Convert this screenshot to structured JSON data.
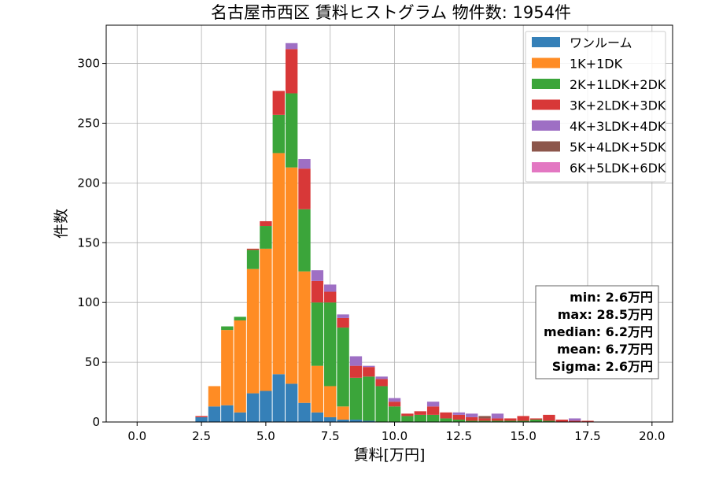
{
  "chart_data": {
    "type": "bar",
    "stacked": true,
    "title": "名古屋市西区 賃料ヒストグラム 物件数: 1954件",
    "xlabel": "賃料[万円]",
    "ylabel": "件数",
    "xlim": [
      -1.2,
      20.8
    ],
    "ylim": [
      0,
      332
    ],
    "xticks": [
      0.0,
      2.5,
      5.0,
      7.5,
      10.0,
      12.5,
      15.0,
      17.5,
      20.0
    ],
    "xtick_labels": [
      "0.0",
      "2.5",
      "5.0",
      "7.5",
      "10.0",
      "12.5",
      "15.0",
      "17.5",
      "20.0"
    ],
    "yticks": [
      0,
      50,
      100,
      150,
      200,
      250,
      300
    ],
    "ytick_labels": [
      "0",
      "50",
      "100",
      "150",
      "200",
      "250",
      "300"
    ],
    "grid": true,
    "legend_position": "top-right",
    "bin_width": 0.5,
    "bin_starts": [
      2.25,
      2.75,
      3.25,
      3.75,
      4.25,
      4.75,
      5.25,
      5.75,
      6.25,
      6.75,
      7.25,
      7.75,
      8.25,
      8.75,
      9.25,
      9.75,
      10.25,
      10.75,
      11.25,
      11.75,
      12.25,
      12.75,
      13.25,
      13.75,
      14.25,
      14.75,
      15.25,
      15.75,
      16.25,
      16.75,
      17.25
    ],
    "series": [
      {
        "name": "ワンルーム",
        "color": "#3580b8",
        "values": [
          4,
          13,
          14,
          8,
          24,
          26,
          40,
          32,
          16,
          8,
          4,
          2,
          2,
          1,
          0,
          0,
          0,
          0,
          0,
          0,
          0,
          0,
          0,
          0,
          0,
          0,
          0,
          0,
          0,
          0,
          0
        ]
      },
      {
        "name": "1K+1DK",
        "color": "#ff8c24",
        "values": [
          0,
          17,
          63,
          77,
          104,
          119,
          185,
          181,
          110,
          39,
          26,
          11,
          0,
          0,
          0,
          0,
          0,
          0,
          0,
          0,
          0,
          0,
          0,
          0,
          0,
          0,
          0,
          0,
          0,
          0,
          0
        ]
      },
      {
        "name": "2K+1LDK+2DK",
        "color": "#3ba53a",
        "values": [
          0,
          0,
          3,
          3,
          16,
          19,
          32,
          62,
          52,
          53,
          70,
          66,
          35,
          37,
          30,
          13,
          5,
          6,
          6,
          3,
          2,
          1,
          1,
          1,
          1,
          1,
          2,
          1,
          0,
          0,
          0
        ]
      },
      {
        "name": "3K+2LDK+3DK",
        "color": "#d83838",
        "values": [
          1,
          0,
          0,
          0,
          1,
          4,
          20,
          37,
          34,
          18,
          9,
          8,
          10,
          8,
          6,
          4,
          2,
          3,
          7,
          5,
          4,
          3,
          2,
          2,
          2,
          4,
          1,
          5,
          2,
          1,
          1
        ]
      },
      {
        "name": "4K+3LDK+4DK",
        "color": "#9e6fc4",
        "values": [
          0,
          0,
          0,
          0,
          0,
          0,
          0,
          5,
          8,
          9,
          6,
          3,
          8,
          1,
          2,
          3,
          0,
          0,
          4,
          0,
          2,
          3,
          0,
          4,
          0,
          0,
          0,
          0,
          0,
          2,
          0
        ]
      },
      {
        "name": "5K+4LDK+5DK",
        "color": "#8c564b",
        "values": [
          0,
          0,
          0,
          0,
          0,
          0,
          0,
          0,
          0,
          0,
          0,
          0,
          0,
          0,
          0,
          0,
          0,
          0,
          0,
          0,
          0,
          0,
          2,
          0,
          0,
          0,
          0,
          0,
          0,
          0,
          0
        ]
      },
      {
        "name": "6K+5LDK+6DK",
        "color": "#e377c2",
        "values": [
          0,
          0,
          0,
          0,
          0,
          0,
          0,
          0,
          0,
          0,
          0,
          0,
          0,
          0,
          0,
          0,
          0,
          0,
          0,
          0,
          0,
          0,
          0,
          0,
          0,
          0,
          0,
          0,
          0,
          0,
          0
        ]
      }
    ],
    "stats": [
      "min: 2.6万円",
      "max: 28.5万円",
      "median: 6.2万円",
      "mean: 6.7万円",
      "Sigma: 2.6万円"
    ]
  }
}
